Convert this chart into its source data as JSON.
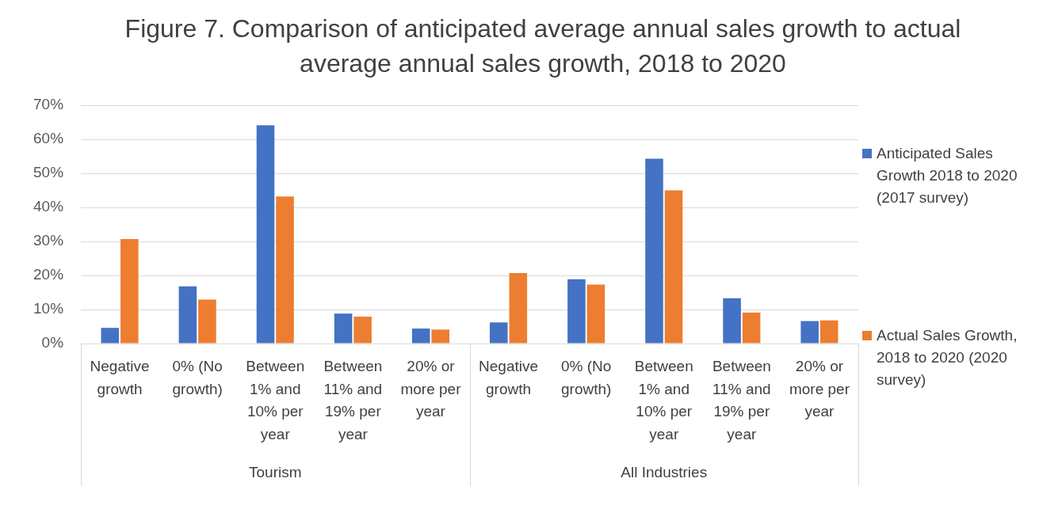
{
  "chart_data": {
    "type": "bar",
    "title": "Figure 7. Comparison of anticipated average annual sales growth to actual average annual sales growth, 2018 to 2020",
    "categories": [
      "Negative growth",
      "0% (No growth)",
      "Between 1% and 10% per year",
      "Between 11% and 19% per year",
      "20% or more per year",
      "Negative growth",
      "0% (No growth)",
      "Between 1% and 10% per year",
      "Between 11% and 19% per year",
      "20% or more per year"
    ],
    "series": [
      {
        "name": "Anticipated Sales Growth 2018 to 2020 (2017 survey)",
        "color": "#4472c4",
        "values": [
          4.6,
          16.8,
          64.1,
          8.8,
          4.4,
          6.2,
          18.9,
          54.3,
          13.3,
          6.6
        ]
      },
      {
        "name": "Actual Sales Growth, 2018 to 2020 (2020 survey)",
        "color": "#ed7d31",
        "values": [
          30.7,
          12.9,
          43.2,
          7.9,
          4.1,
          20.7,
          17.3,
          45,
          9.1,
          6.8
        ]
      }
    ],
    "ylim": [
      0,
      70
    ],
    "yticks": [
      {
        "value": 0,
        "label": "0%"
      },
      {
        "value": 10,
        "label": "10%"
      },
      {
        "value": 20,
        "label": "20%"
      },
      {
        "value": 30,
        "label": "30%"
      },
      {
        "value": 40,
        "label": "40%"
      },
      {
        "value": 50,
        "label": "50%"
      },
      {
        "value": 60,
        "label": "60%"
      },
      {
        "value": 70,
        "label": "70%"
      }
    ],
    "grid": "y",
    "legend": "right",
    "annotations": [
      "Tourism",
      "All Industries"
    ]
  }
}
